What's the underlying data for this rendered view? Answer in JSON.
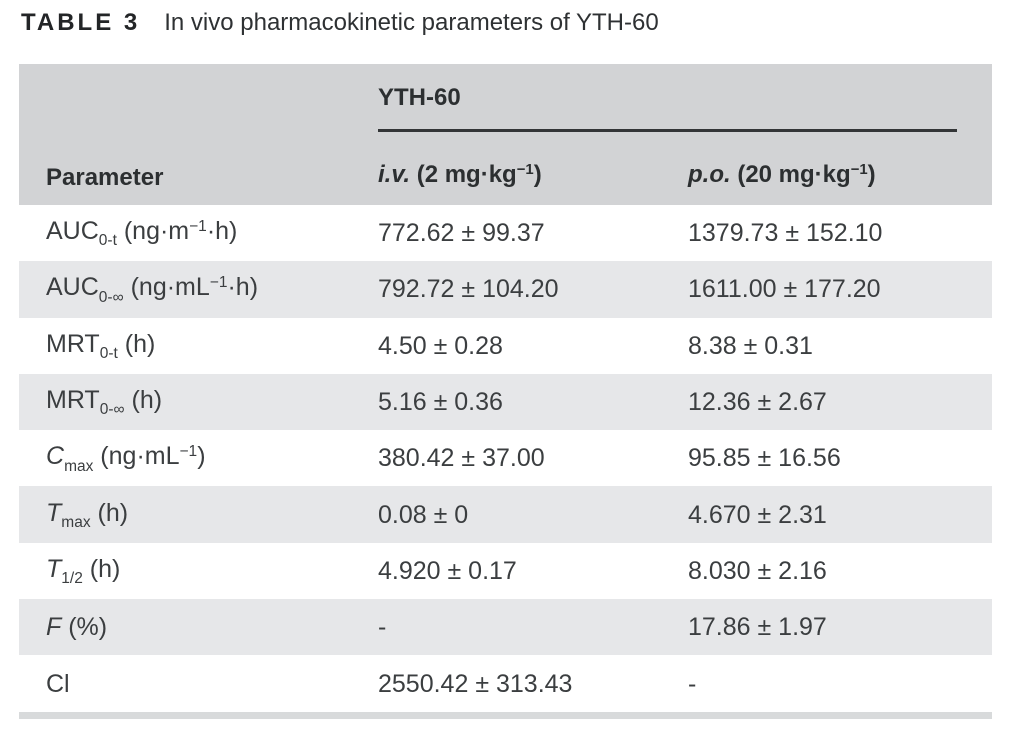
{
  "caption": {
    "label": "TABLE 3",
    "text": "In vivo pharmacokinetic parameters of YTH-60"
  },
  "table": {
    "group_header": "YTH-60",
    "columns": {
      "parameter": [
        {
          "t": "Parameter",
          "s": "n"
        }
      ],
      "iv": [
        {
          "t": "i.v.",
          "s": "i"
        },
        {
          "t": " (2 mg·kg",
          "s": "n"
        },
        {
          "t": "−1",
          "s": "sup"
        },
        {
          "t": ")",
          "s": "n"
        }
      ],
      "po": [
        {
          "t": "p.o.",
          "s": "i"
        },
        {
          "t": " (20 mg·kg",
          "s": "n"
        },
        {
          "t": "−1",
          "s": "sup"
        },
        {
          "t": ")",
          "s": "n"
        }
      ]
    },
    "rows": [
      {
        "param": [
          {
            "t": "AUC",
            "s": "n"
          },
          {
            "t": "0-t",
            "s": "sub"
          },
          {
            "t": " (ng·m",
            "s": "n"
          },
          {
            "t": "−1",
            "s": "sup"
          },
          {
            "t": "·h)",
            "s": "n"
          }
        ],
        "iv": "772.62 ± 99.37",
        "po": "1379.73 ± 152.10"
      },
      {
        "param": [
          {
            "t": "AUC",
            "s": "n"
          },
          {
            "t": "0-∞",
            "s": "sub"
          },
          {
            "t": " (ng·mL",
            "s": "n"
          },
          {
            "t": "−1",
            "s": "sup"
          },
          {
            "t": "·h)",
            "s": "n"
          }
        ],
        "iv": "792.72 ± 104.20",
        "po": "1611.00 ± 177.20"
      },
      {
        "param": [
          {
            "t": "MRT",
            "s": "n"
          },
          {
            "t": "0-t",
            "s": "sub"
          },
          {
            "t": " (h)",
            "s": "n"
          }
        ],
        "iv": "4.50 ± 0.28",
        "po": "8.38 ± 0.31"
      },
      {
        "param": [
          {
            "t": "MRT",
            "s": "n"
          },
          {
            "t": "0-∞",
            "s": "sub"
          },
          {
            "t": " (h)",
            "s": "n"
          }
        ],
        "iv": "5.16 ± 0.36",
        "po": "12.36 ± 2.67"
      },
      {
        "param": [
          {
            "t": "C",
            "s": "i"
          },
          {
            "t": "max",
            "s": "sub"
          },
          {
            "t": " (ng·mL",
            "s": "n"
          },
          {
            "t": "−1",
            "s": "sup"
          },
          {
            "t": ")",
            "s": "n"
          }
        ],
        "iv": "380.42 ± 37.00",
        "po": "95.85 ± 16.56"
      },
      {
        "param": [
          {
            "t": "T",
            "s": "i"
          },
          {
            "t": "max",
            "s": "sub"
          },
          {
            "t": " (h)",
            "s": "n"
          }
        ],
        "iv": "0.08 ± 0",
        "po": "4.670 ± 2.31"
      },
      {
        "param": [
          {
            "t": "T",
            "s": "i"
          },
          {
            "t": "1/2",
            "s": "sub"
          },
          {
            "t": " (h)",
            "s": "n"
          }
        ],
        "iv": "4.920 ± 0.17",
        "po": "8.030 ± 2.16"
      },
      {
        "param": [
          {
            "t": "F",
            "s": "i"
          },
          {
            "t": " (%)",
            "s": "n"
          }
        ],
        "iv": "-",
        "po": "17.86 ± 1.97"
      },
      {
        "param": [
          {
            "t": "Cl",
            "s": "n"
          }
        ],
        "iv": "2550.42 ± 313.43",
        "po": "-"
      }
    ]
  },
  "colors": {
    "header_bg": "#d2d3d5",
    "alt_row_bg": "#e6e7e9",
    "bottom_rule": "#d8dadb",
    "text": "#3b3e40",
    "group_rule": "#333537"
  }
}
